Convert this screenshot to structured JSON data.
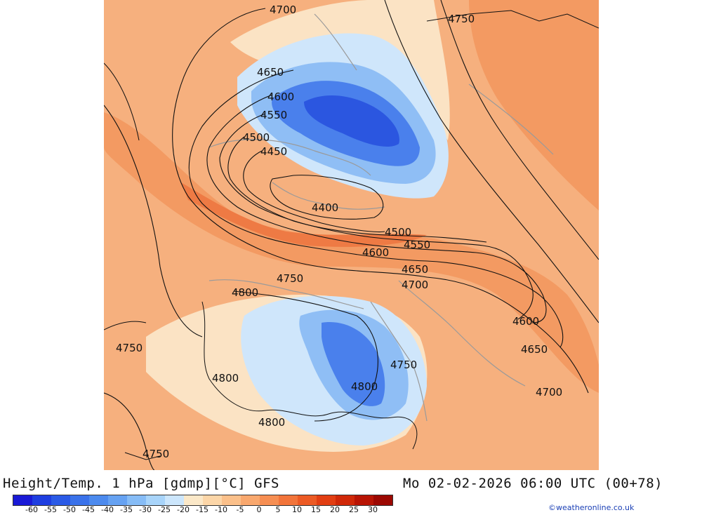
{
  "title": {
    "left": "Height/Temp. 1 hPa [gdmp][°C] GFS",
    "right": "Mo 02-02-2026 06:00 UTC (00+78)"
  },
  "contour_labels": [
    {
      "id": "l4700a",
      "text": "4700"
    },
    {
      "id": "l4750a",
      "text": "4750"
    },
    {
      "id": "l4650a",
      "text": "4650"
    },
    {
      "id": "l4600a",
      "text": "4600"
    },
    {
      "id": "l4550a",
      "text": "4550"
    },
    {
      "id": "l4500a",
      "text": "4500"
    },
    {
      "id": "l4450a",
      "text": "4450"
    },
    {
      "id": "l4400a",
      "text": "4400"
    },
    {
      "id": "l4500b",
      "text": "4500"
    },
    {
      "id": "l4550b",
      "text": "4550"
    },
    {
      "id": "l4600b",
      "text": "4600"
    },
    {
      "id": "l4650b",
      "text": "4650"
    },
    {
      "id": "l4700b",
      "text": "4700"
    },
    {
      "id": "l4750b",
      "text": "4750"
    },
    {
      "id": "l4800a",
      "text": "4800"
    },
    {
      "id": "l4750c",
      "text": "4750"
    },
    {
      "id": "l4800b",
      "text": "4800"
    },
    {
      "id": "l4750d",
      "text": "4750"
    },
    {
      "id": "l4800c",
      "text": "4800"
    },
    {
      "id": "l4800d",
      "text": "4800"
    },
    {
      "id": "l4600c",
      "text": "4600"
    },
    {
      "id": "l4650c",
      "text": "4650"
    },
    {
      "id": "l4700c",
      "text": "4700"
    },
    {
      "id": "l4750e",
      "text": "4750"
    }
  ],
  "colorbar": {
    "colors": [
      "#1a1ad6",
      "#1e3ee0",
      "#2a5ae6",
      "#3a72ea",
      "#4c8aee",
      "#66a2f2",
      "#86bcf6",
      "#a8d4fa",
      "#cce6fc",
      "#fbe8c8",
      "#fcd6a8",
      "#fbc08a",
      "#f9a86e",
      "#f68e52",
      "#f2743a",
      "#ec5a24",
      "#e23e12",
      "#d02808",
      "#b81404",
      "#9c0802"
    ],
    "ticks": [
      "-60",
      "-55",
      "-50",
      "-45",
      "-40",
      "-35",
      "-30",
      "-25",
      "-20",
      "-15",
      "-10",
      "-5",
      "0",
      "5",
      "10",
      "15",
      "20",
      "25",
      "30"
    ]
  },
  "palette": {
    "orange_bg": "#f6b07e",
    "orange_mid": "#f39a62",
    "orange_deep": "#ee7a44",
    "pale": "#fbe3c4",
    "blue_light": "#cfe6fb",
    "blue_mid": "#8fbef5",
    "blue_deep": "#4a80ec",
    "blue_core": "#2b56e0"
  },
  "credit": "©weatheronline.co.uk"
}
